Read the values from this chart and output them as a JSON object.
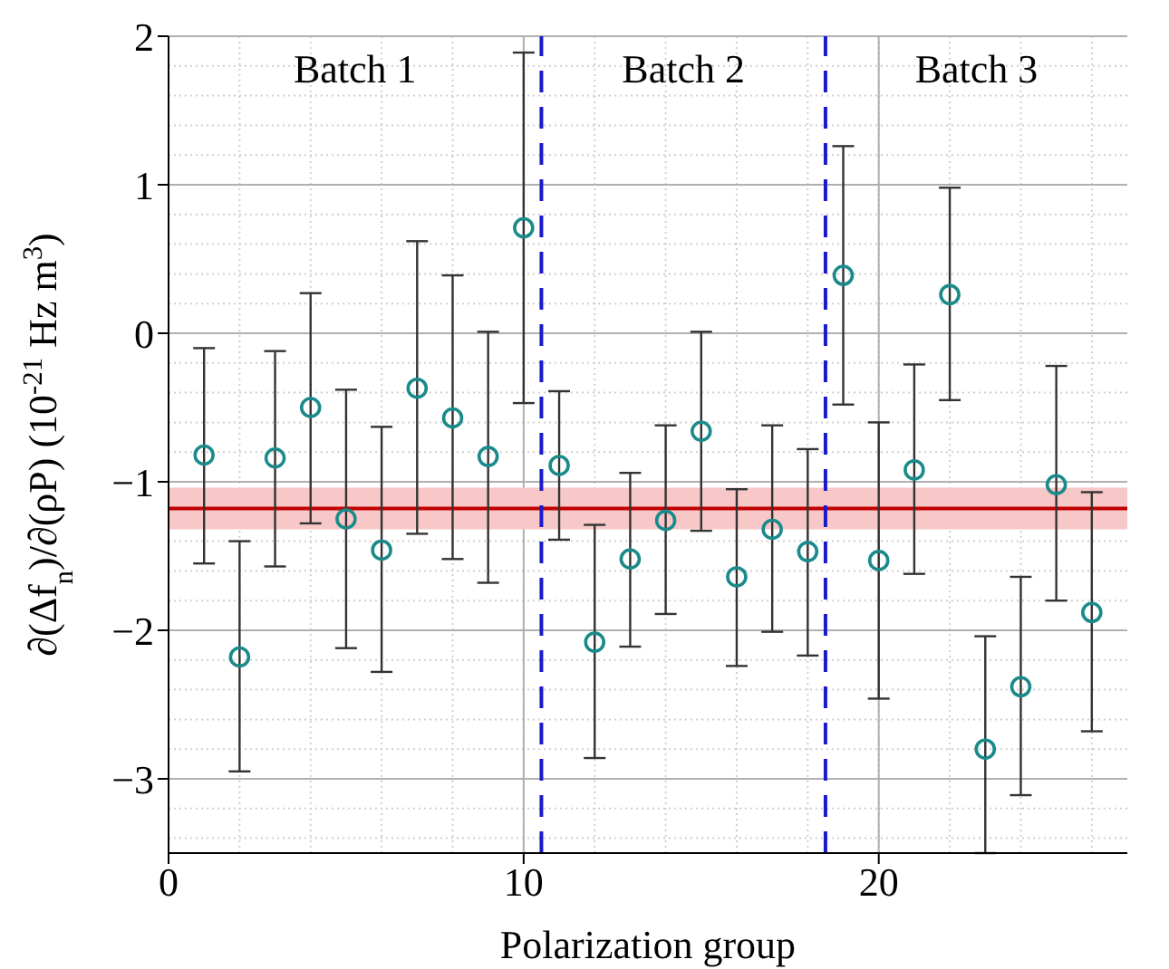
{
  "chart_data": {
    "type": "scatter",
    "xlabel": "Polarization group",
    "ylabel": "∂(Δf$_{n}$)/∂(ρP) (10$^{-21}$ Hz m$^{3}$)",
    "x": [
      1,
      2,
      3,
      4,
      5,
      6,
      7,
      8,
      9,
      10,
      11,
      12,
      13,
      14,
      15,
      16,
      17,
      18,
      19,
      20,
      21,
      22,
      23,
      24,
      25,
      26
    ],
    "series": [
      {
        "color": "#1a8a8a",
        "values": [
          -0.82,
          -2.18,
          -0.84,
          -0.5,
          -1.25,
          -1.46,
          -0.37,
          -0.57,
          -0.83,
          0.71,
          -0.89,
          -2.08,
          -1.52,
          -1.26,
          -0.66,
          -1.64,
          -1.32,
          -1.47,
          0.39,
          -1.53,
          -0.92,
          0.26,
          -2.8,
          -2.38,
          -1.02,
          -1.88
        ],
        "errors": [
          [
            -1.55,
            -0.1
          ],
          [
            -2.95,
            -1.4
          ],
          [
            -1.57,
            -0.12
          ],
          [
            -1.28,
            0.27
          ],
          [
            -2.12,
            -0.38
          ],
          [
            -2.28,
            -0.63
          ],
          [
            -1.35,
            0.62
          ],
          [
            -1.52,
            0.39
          ],
          [
            -1.68,
            0.01
          ],
          [
            -0.47,
            1.89
          ],
          [
            -1.39,
            -0.39
          ],
          [
            -2.86,
            -1.29
          ],
          [
            -2.11,
            -0.94
          ],
          [
            -1.89,
            -0.62
          ],
          [
            -1.33,
            0.01
          ],
          [
            -2.24,
            -1.05
          ],
          [
            -2.01,
            -0.62
          ],
          [
            -2.17,
            -0.78
          ],
          [
            -0.48,
            1.26
          ],
          [
            -2.46,
            -0.6
          ],
          [
            -1.62,
            -0.21
          ],
          [
            -0.45,
            0.98
          ],
          [
            -3.5,
            -2.04
          ],
          [
            -3.11,
            -1.64
          ],
          [
            -1.8,
            -0.22
          ],
          [
            -2.68,
            -1.07
          ]
        ]
      }
    ],
    "annotations": [
      "Batch 1",
      "Batch 2",
      "Batch 3"
    ],
    "ref_lines": [
      {
        "axis": "y",
        "value": -1.18,
        "color": "#c00000",
        "line_style": "solid"
      },
      {
        "axis": "x",
        "value": 10.5,
        "color": "#1a1acc",
        "line_style": "dashed"
      },
      {
        "axis": "x",
        "value": 18.5,
        "color": "#1a1acc",
        "line_style": "dashed"
      }
    ],
    "bands": [
      {
        "axis": "y",
        "from": -1.32,
        "to": -1.04,
        "color": "#f8c8c8"
      }
    ],
    "xlim": [
      0,
      27
    ],
    "ylim": [
      -3.5,
      2
    ],
    "xticks": [
      0,
      10,
      20
    ],
    "yticks": [
      -3,
      -2,
      -1,
      0,
      1,
      2
    ],
    "grid": true,
    "marker": "circle",
    "legend": false
  }
}
